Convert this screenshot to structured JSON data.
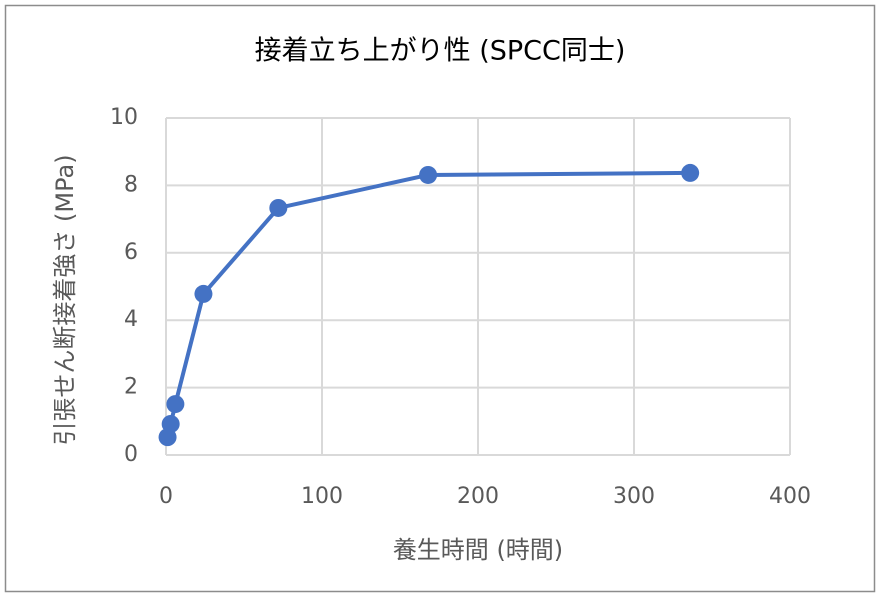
{
  "chart_data": {
    "type": "line",
    "title": "接着立ち上がり性 (SPCC同士)",
    "x_label": "養生時間 (時間)",
    "y_label": "引張せん断接着強さ (MPa)",
    "x": [
      1,
      3,
      6,
      24,
      72,
      168,
      336
    ],
    "series": [
      {
        "name": "引張せん断接着強さ",
        "color": "#4472c4",
        "values": [
          0.53,
          0.92,
          1.51,
          4.78,
          7.33,
          8.31,
          8.37
        ]
      }
    ],
    "xlim": [
      0,
      400
    ],
    "xticks": [
      0,
      100,
      200,
      300,
      400
    ],
    "ylim": [
      0,
      10
    ],
    "yticks": [
      0,
      2,
      4,
      6,
      8,
      10
    ],
    "grid": true
  }
}
